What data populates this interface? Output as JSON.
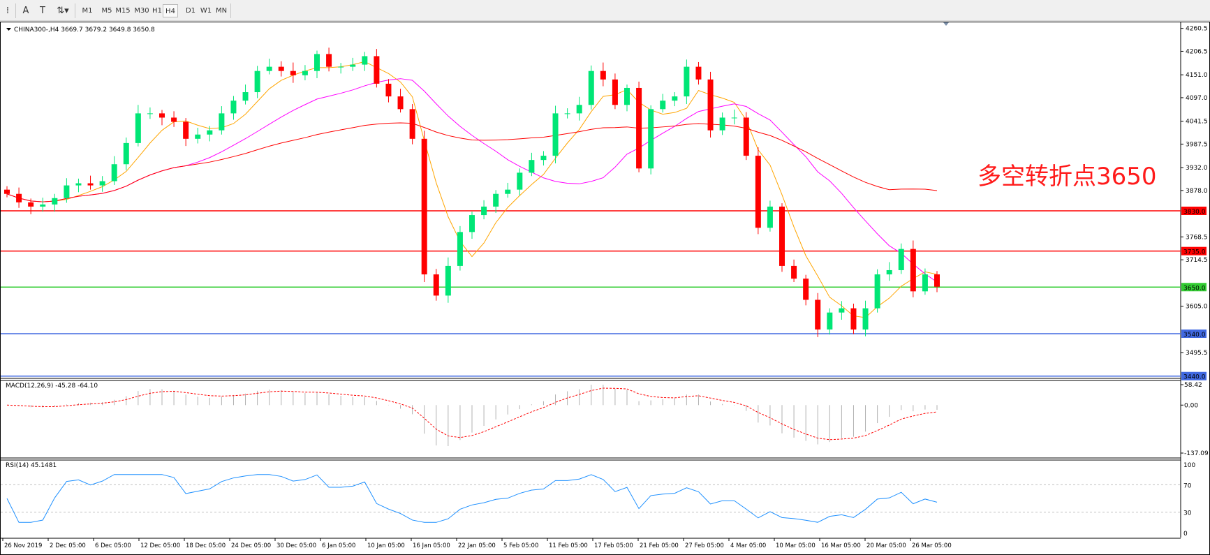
{
  "toolbar": {
    "tools": [
      {
        "name": "period-separator-icon",
        "glyph": "⁞"
      },
      {
        "name": "text-icon",
        "glyph": "A"
      },
      {
        "name": "text-label-icon",
        "glyph": "T"
      },
      {
        "name": "arrows-icon",
        "glyph": "⇅▾"
      }
    ],
    "timeframes": [
      "M1",
      "M5",
      "M15",
      "M30",
      "H1",
      "H4",
      "D1",
      "W1",
      "MN"
    ],
    "active_timeframe": "H4"
  },
  "chart": {
    "header": "CHINA300-,H4  3669.7 3679.2 3649.8 3650.8",
    "annotation": "多空转折点3650",
    "annotation_color": "#ff1a1a",
    "bull_color": "#00e676",
    "bear_color": "#ff0000"
  },
  "chart_data": {
    "type": "candlestick",
    "symbol": "CHINA300-",
    "timeframe": "H4",
    "last_ohlc": [
      3669.7,
      3679.2,
      3649.8,
      3650.8
    ],
    "ylim": [
      3440,
      4275
    ],
    "closes_approx": [
      3870,
      3850,
      3840,
      3845,
      3860,
      3890,
      3895,
      3890,
      3900,
      3940,
      3990,
      4060,
      4060,
      4050,
      4040,
      4000,
      4010,
      4020,
      4060,
      4090,
      4110,
      4160,
      4170,
      4160,
      4150,
      4160,
      4200,
      4170,
      4170,
      4175,
      4195,
      4130,
      4100,
      4070,
      4000,
      3680,
      3630,
      3700,
      3780,
      3820,
      3840,
      3870,
      3880,
      3920,
      3950,
      3960,
      4060,
      4060,
      4080,
      4160,
      4140,
      4080,
      4120,
      3930,
      4070,
      4090,
      4100,
      4170,
      4140,
      4020,
      4050,
      4050,
      3960,
      3790,
      3840,
      3700,
      3670,
      3620,
      3550,
      3590,
      3600,
      3550,
      3600,
      3680,
      3690,
      3740,
      3640,
      3680,
      3651
    ],
    "moving_averages": [
      {
        "color": "#ffa500"
      },
      {
        "color": "#ff00ff"
      },
      {
        "color": "#ff0000"
      }
    ],
    "price_ticks": [
      "4260.5",
      "4206.5",
      "4151.0",
      "4097.0",
      "4041.5",
      "3987.5",
      "3932.0",
      "3878.0",
      "3768.5",
      "3714.5",
      "3605.0",
      "3495.5"
    ],
    "horizontal_lines": [
      {
        "price": "3830.0",
        "color": "#ff0000"
      },
      {
        "price": "3735.0",
        "color": "#ff0000"
      },
      {
        "price": "3650.0",
        "color": "#33cc33"
      },
      {
        "price": "3540.0",
        "color": "#4169e1"
      },
      {
        "price": "3440.0",
        "color": "#4169e1"
      }
    ],
    "time_labels": [
      "26 Nov 2019",
      "2 Dec 05:00",
      "6 Dec 05:00",
      "12 Dec 05:00",
      "18 Dec 05:00",
      "24 Dec 05:00",
      "30 Dec 05:00",
      "6 Jan 05:00",
      "10 Jan 05:00",
      "16 Jan 05:00",
      "22 Jan 05:00",
      "5 Feb 05:00",
      "11 Feb 05:00",
      "17 Feb 05:00",
      "21 Feb 05:00",
      "27 Feb 05:00",
      "4 Mar 05:00",
      "10 Mar 05:00",
      "16 Mar 05:00",
      "20 Mar 05:00",
      "26 Mar 05:00"
    ]
  },
  "macd": {
    "label": "MACD(12,26,9) -45.28 -64.10",
    "ticks": [
      "58.42",
      "0.00",
      "-137.09"
    ],
    "range": [
      -137.09,
      58.42
    ]
  },
  "rsi": {
    "label": "RSI(14) 45.1481",
    "ticks": [
      "100",
      "70",
      "30",
      "0"
    ],
    "color": "#1e90ff"
  }
}
